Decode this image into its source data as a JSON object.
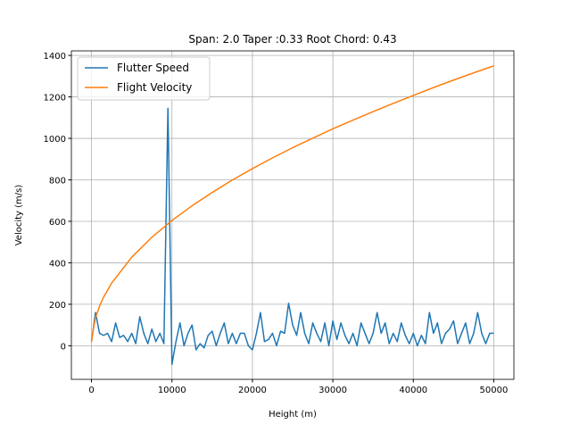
{
  "chart_data": {
    "type": "line",
    "title": "Span: 2.0 Taper :0.33 Root Chord: 0.43",
    "xlabel": "Height (m)",
    "ylabel": "Velocity (m/s)",
    "xlim": [
      -2500,
      52500
    ],
    "ylim": [
      -162,
      1422
    ],
    "xticks": [
      0,
      10000,
      20000,
      30000,
      40000,
      50000
    ],
    "yticks": [
      0,
      200,
      400,
      600,
      800,
      1000,
      1200,
      1400
    ],
    "grid": true,
    "legend": "upper left",
    "series": [
      {
        "name": "Flutter Speed",
        "color": "#1f77b4",
        "x": [
          0,
          500,
          1000,
          1500,
          2000,
          2500,
          3000,
          3500,
          4000,
          4500,
          5000,
          5500,
          6000,
          6500,
          7000,
          7500,
          8000,
          8500,
          9000,
          9500,
          10000,
          10500,
          11000,
          11500,
          12000,
          12500,
          13000,
          13500,
          14000,
          14500,
          15000,
          15500,
          16000,
          16500,
          17000,
          17500,
          18000,
          18500,
          19000,
          19500,
          20000,
          20500,
          21000,
          21500,
          22000,
          22500,
          23000,
          23500,
          24000,
          24500,
          25000,
          25500,
          26000,
          26500,
          27000,
          27500,
          28000,
          28500,
          29000,
          29500,
          30000,
          30500,
          31000,
          31500,
          32000,
          32500,
          33000,
          33500,
          34000,
          34500,
          35000,
          35500,
          36000,
          36500,
          37000,
          37500,
          38000,
          38500,
          39000,
          39500,
          40000,
          40500,
          41000,
          41500,
          42000,
          42500,
          43000,
          43500,
          44000,
          44500,
          45000,
          45500,
          46000,
          46500,
          47000,
          47500,
          48000,
          48500,
          49000,
          49500,
          50000
        ],
        "values": [
          20,
          160,
          60,
          50,
          60,
          20,
          110,
          40,
          50,
          20,
          60,
          10,
          140,
          60,
          10,
          80,
          20,
          60,
          10,
          1145,
          -90,
          20,
          110,
          0,
          60,
          100,
          -20,
          10,
          -10,
          50,
          70,
          0,
          60,
          110,
          10,
          60,
          10,
          60,
          60,
          0,
          -20,
          60,
          160,
          20,
          30,
          60,
          0,
          70,
          60,
          205,
          100,
          50,
          160,
          60,
          10,
          110,
          60,
          20,
          110,
          0,
          120,
          30,
          110,
          50,
          10,
          60,
          0,
          110,
          60,
          10,
          60,
          160,
          60,
          110,
          10,
          60,
          20,
          110,
          50,
          10,
          60,
          0,
          50,
          10,
          160,
          60,
          110,
          10,
          60,
          80,
          120,
          10,
          60,
          110,
          10,
          60,
          160,
          60,
          10,
          60,
          60
        ]
      },
      {
        "name": "Flight Velocity",
        "color": "#ff7f0e",
        "x": [
          0,
          250,
          500,
          1000,
          1500,
          2500,
          5000,
          7500,
          10000,
          12500,
          15000,
          17500,
          20000,
          22500,
          25000,
          27500,
          30000,
          32500,
          35000,
          37500,
          40000,
          42500,
          45000,
          47500,
          50000
        ],
        "values": [
          20,
          85,
          135,
          191,
          234,
          302,
          427,
          523,
          604,
          675,
          739,
          799,
          854,
          906,
          955,
          1001,
          1046,
          1088,
          1129,
          1169,
          1207,
          1245,
          1281,
          1316,
          1350
        ]
      }
    ]
  }
}
